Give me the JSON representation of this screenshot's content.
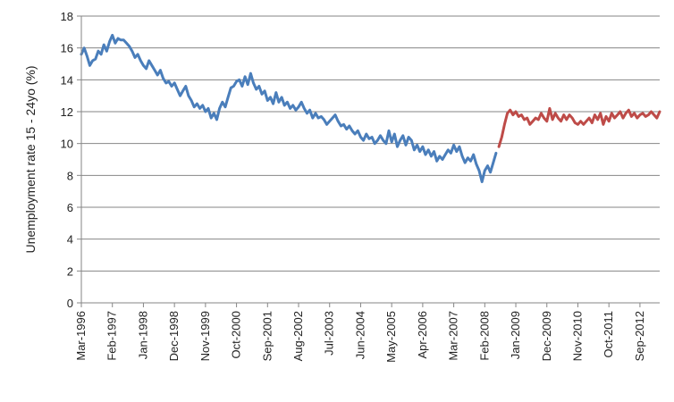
{
  "chart_data": {
    "type": "line",
    "title": "",
    "xlabel": "",
    "ylabel": "Unemployment rate 15 - 24yo (%)",
    "ylim": [
      0,
      18
    ],
    "yticks": [
      0,
      2,
      4,
      6,
      8,
      10,
      12,
      14,
      16,
      18
    ],
    "grid": "horizontal",
    "legend": "none",
    "x_tick_labels": [
      "Mar-1996",
      "Feb-1997",
      "Jan-1998",
      "Dec-1998",
      "Nov-1999",
      "Oct-2000",
      "Sep-2001",
      "Aug-2002",
      "Jul-2003",
      "Jun-2004",
      "May-2005",
      "Apr-2006",
      "Mar-2007",
      "Feb-2008",
      "Jan-2009",
      "Dec-2009",
      "Nov-2010",
      "Oct-2011",
      "Sep-2012"
    ],
    "x_range": [
      "1996-03",
      "2013-04"
    ],
    "series": [
      {
        "color": "#4a7ebb",
        "points": [
          [
            "1996-03",
            15.6
          ],
          [
            "1996-04",
            16.0
          ],
          [
            "1996-05",
            15.5
          ],
          [
            "1996-06",
            14.9
          ],
          [
            "1996-07",
            15.2
          ],
          [
            "1996-08",
            15.3
          ],
          [
            "1996-09",
            15.8
          ],
          [
            "1996-10",
            15.6
          ],
          [
            "1996-11",
            16.2
          ],
          [
            "1996-12",
            15.8
          ],
          [
            "1997-01",
            16.4
          ],
          [
            "1997-02",
            16.8
          ],
          [
            "1997-03",
            16.3
          ],
          [
            "1997-04",
            16.6
          ],
          [
            "1997-05",
            16.5
          ],
          [
            "1997-06",
            16.5
          ],
          [
            "1997-07",
            16.3
          ],
          [
            "1997-08",
            16.1
          ],
          [
            "1997-09",
            15.8
          ],
          [
            "1997-10",
            15.4
          ],
          [
            "1997-11",
            15.6
          ],
          [
            "1997-12",
            15.2
          ],
          [
            "1998-01",
            14.9
          ],
          [
            "1998-02",
            14.7
          ],
          [
            "1998-03",
            15.2
          ],
          [
            "1998-04",
            14.9
          ],
          [
            "1998-05",
            14.6
          ],
          [
            "1998-06",
            14.3
          ],
          [
            "1998-07",
            14.6
          ],
          [
            "1998-08",
            14.1
          ],
          [
            "1998-09",
            13.8
          ],
          [
            "1998-10",
            13.9
          ],
          [
            "1998-11",
            13.6
          ],
          [
            "1998-12",
            13.8
          ],
          [
            "1999-01",
            13.4
          ],
          [
            "1999-02",
            13.0
          ],
          [
            "1999-03",
            13.3
          ],
          [
            "1999-04",
            13.6
          ],
          [
            "1999-05",
            13.0
          ],
          [
            "1999-06",
            12.7
          ],
          [
            "1999-07",
            12.3
          ],
          [
            "1999-08",
            12.5
          ],
          [
            "1999-09",
            12.2
          ],
          [
            "1999-10",
            12.4
          ],
          [
            "1999-11",
            12.0
          ],
          [
            "1999-12",
            12.2
          ],
          [
            "2000-01",
            11.6
          ],
          [
            "2000-02",
            11.9
          ],
          [
            "2000-03",
            11.5
          ],
          [
            "2000-04",
            12.2
          ],
          [
            "2000-05",
            12.6
          ],
          [
            "2000-06",
            12.3
          ],
          [
            "2000-07",
            12.9
          ],
          [
            "2000-08",
            13.5
          ],
          [
            "2000-09",
            13.6
          ],
          [
            "2000-10",
            13.9
          ],
          [
            "2000-11",
            14.0
          ],
          [
            "2000-12",
            13.6
          ],
          [
            "2001-01",
            14.2
          ],
          [
            "2001-02",
            13.7
          ],
          [
            "2001-03",
            14.4
          ],
          [
            "2001-04",
            13.8
          ],
          [
            "2001-05",
            13.4
          ],
          [
            "2001-06",
            13.6
          ],
          [
            "2001-07",
            13.1
          ],
          [
            "2001-08",
            13.3
          ],
          [
            "2001-09",
            12.7
          ],
          [
            "2001-10",
            12.9
          ],
          [
            "2001-11",
            12.5
          ],
          [
            "2001-12",
            13.2
          ],
          [
            "2002-01",
            12.6
          ],
          [
            "2002-02",
            12.9
          ],
          [
            "2002-03",
            12.4
          ],
          [
            "2002-04",
            12.6
          ],
          [
            "2002-05",
            12.2
          ],
          [
            "2002-06",
            12.4
          ],
          [
            "2002-07",
            12.1
          ],
          [
            "2002-08",
            12.3
          ],
          [
            "2002-09",
            12.6
          ],
          [
            "2002-10",
            12.2
          ],
          [
            "2002-11",
            11.9
          ],
          [
            "2002-12",
            12.1
          ],
          [
            "2003-01",
            11.6
          ],
          [
            "2003-02",
            11.9
          ],
          [
            "2003-03",
            11.6
          ],
          [
            "2003-04",
            11.7
          ],
          [
            "2003-05",
            11.5
          ],
          [
            "2003-06",
            11.2
          ],
          [
            "2003-07",
            11.4
          ],
          [
            "2003-08",
            11.6
          ],
          [
            "2003-09",
            11.8
          ],
          [
            "2003-10",
            11.4
          ],
          [
            "2003-11",
            11.1
          ],
          [
            "2003-12",
            11.2
          ],
          [
            "2004-01",
            10.9
          ],
          [
            "2004-02",
            11.1
          ],
          [
            "2004-03",
            10.8
          ],
          [
            "2004-04",
            10.6
          ],
          [
            "2004-05",
            10.8
          ],
          [
            "2004-06",
            10.4
          ],
          [
            "2004-07",
            10.2
          ],
          [
            "2004-08",
            10.6
          ],
          [
            "2004-09",
            10.3
          ],
          [
            "2004-10",
            10.4
          ],
          [
            "2004-11",
            10.0
          ],
          [
            "2004-12",
            10.2
          ],
          [
            "2005-01",
            10.5
          ],
          [
            "2005-02",
            10.2
          ],
          [
            "2005-03",
            10.0
          ],
          [
            "2005-04",
            10.8
          ],
          [
            "2005-05",
            10.1
          ],
          [
            "2005-06",
            10.6
          ],
          [
            "2005-07",
            9.8
          ],
          [
            "2005-08",
            10.2
          ],
          [
            "2005-09",
            10.5
          ],
          [
            "2005-10",
            9.9
          ],
          [
            "2005-11",
            10.4
          ],
          [
            "2005-12",
            10.2
          ],
          [
            "2006-01",
            9.6
          ],
          [
            "2006-02",
            9.9
          ],
          [
            "2006-03",
            9.5
          ],
          [
            "2006-04",
            9.8
          ],
          [
            "2006-05",
            9.3
          ],
          [
            "2006-06",
            9.6
          ],
          [
            "2006-07",
            9.2
          ],
          [
            "2006-08",
            9.5
          ],
          [
            "2006-09",
            8.9
          ],
          [
            "2006-10",
            9.2
          ],
          [
            "2006-11",
            9.0
          ],
          [
            "2006-12",
            9.3
          ],
          [
            "2007-01",
            9.6
          ],
          [
            "2007-02",
            9.4
          ],
          [
            "2007-03",
            9.9
          ],
          [
            "2007-04",
            9.5
          ],
          [
            "2007-05",
            9.8
          ],
          [
            "2007-06",
            9.2
          ],
          [
            "2007-07",
            8.8
          ],
          [
            "2007-08",
            9.1
          ],
          [
            "2007-09",
            8.9
          ],
          [
            "2007-10",
            9.3
          ],
          [
            "2007-11",
            8.7
          ],
          [
            "2007-12",
            8.3
          ],
          [
            "2008-01",
            7.6
          ],
          [
            "2008-02",
            8.3
          ],
          [
            "2008-03",
            8.6
          ],
          [
            "2008-04",
            8.2
          ],
          [
            "2008-05",
            8.8
          ],
          [
            "2008-06",
            9.4
          ]
        ]
      },
      {
        "color": "#be4b48",
        "points": [
          [
            "2008-07",
            9.8
          ],
          [
            "2008-08",
            10.4
          ],
          [
            "2008-09",
            11.2
          ],
          [
            "2008-10",
            11.9
          ],
          [
            "2008-11",
            12.1
          ],
          [
            "2008-12",
            11.8
          ],
          [
            "2009-01",
            12.0
          ],
          [
            "2009-02",
            11.7
          ],
          [
            "2009-03",
            11.8
          ],
          [
            "2009-04",
            11.5
          ],
          [
            "2009-05",
            11.6
          ],
          [
            "2009-06",
            11.2
          ],
          [
            "2009-07",
            11.4
          ],
          [
            "2009-08",
            11.6
          ],
          [
            "2009-09",
            11.5
          ],
          [
            "2009-10",
            11.9
          ],
          [
            "2009-11",
            11.6
          ],
          [
            "2009-12",
            11.4
          ],
          [
            "2010-01",
            12.2
          ],
          [
            "2010-02",
            11.5
          ],
          [
            "2010-03",
            11.9
          ],
          [
            "2010-04",
            11.6
          ],
          [
            "2010-05",
            11.4
          ],
          [
            "2010-06",
            11.8
          ],
          [
            "2010-07",
            11.5
          ],
          [
            "2010-08",
            11.8
          ],
          [
            "2010-09",
            11.6
          ],
          [
            "2010-10",
            11.3
          ],
          [
            "2010-11",
            11.2
          ],
          [
            "2010-12",
            11.4
          ],
          [
            "2011-01",
            11.2
          ],
          [
            "2011-02",
            11.4
          ],
          [
            "2011-03",
            11.6
          ],
          [
            "2011-04",
            11.3
          ],
          [
            "2011-05",
            11.8
          ],
          [
            "2011-06",
            11.5
          ],
          [
            "2011-07",
            11.9
          ],
          [
            "2011-08",
            11.2
          ],
          [
            "2011-09",
            11.7
          ],
          [
            "2011-10",
            11.4
          ],
          [
            "2011-11",
            11.9
          ],
          [
            "2011-12",
            11.6
          ],
          [
            "2012-01",
            11.8
          ],
          [
            "2012-02",
            12.0
          ],
          [
            "2012-03",
            11.6
          ],
          [
            "2012-04",
            11.9
          ],
          [
            "2012-05",
            12.1
          ],
          [
            "2012-06",
            11.7
          ],
          [
            "2012-07",
            11.9
          ],
          [
            "2012-08",
            11.6
          ],
          [
            "2012-09",
            11.8
          ],
          [
            "2012-10",
            11.9
          ],
          [
            "2012-11",
            11.7
          ],
          [
            "2012-12",
            11.8
          ],
          [
            "2013-01",
            12.0
          ],
          [
            "2013-02",
            11.8
          ],
          [
            "2013-03",
            11.6
          ],
          [
            "2013-04",
            12.0
          ]
        ]
      }
    ]
  }
}
